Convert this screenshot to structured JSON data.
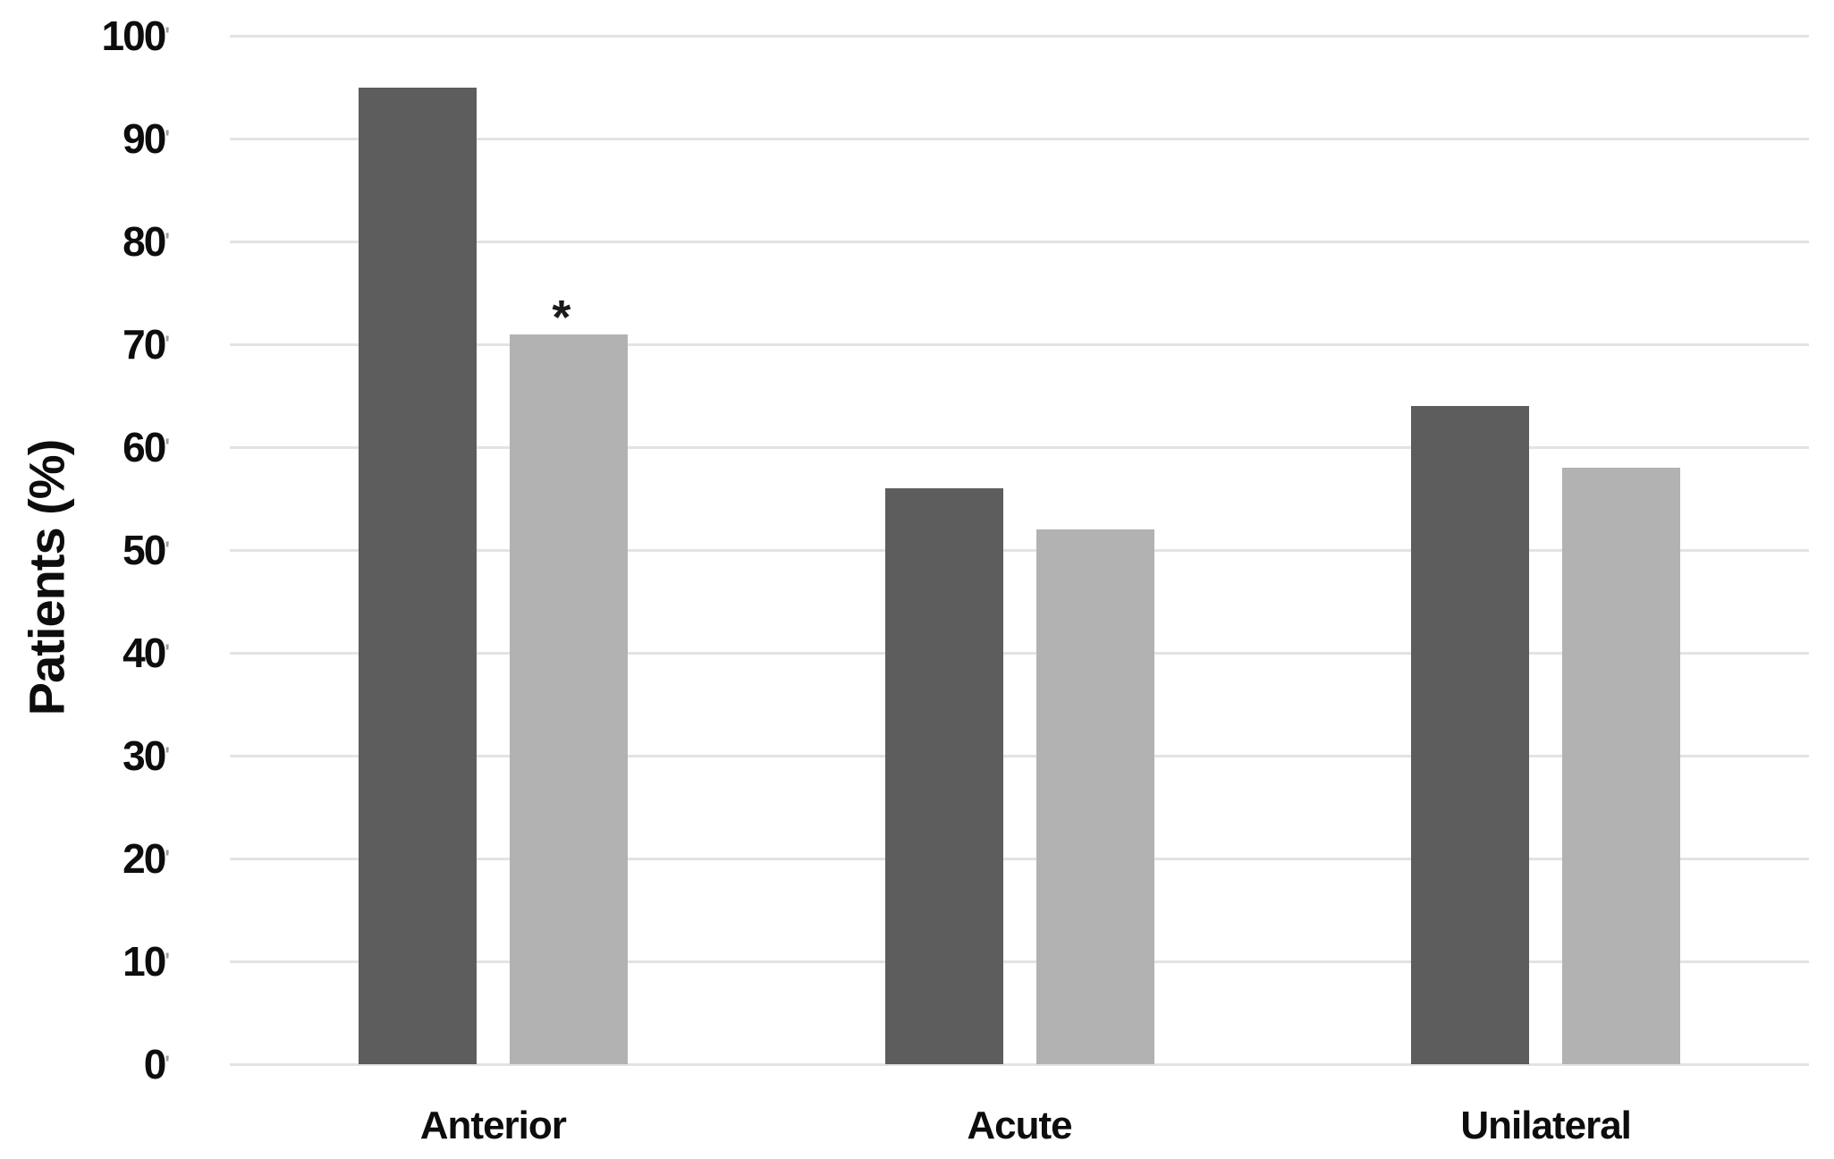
{
  "chart_data": {
    "type": "bar",
    "title": "",
    "ylabel": "Patients (%)",
    "xlabel": "",
    "categories": [
      "Anterior",
      "Acute",
      "Unilateral"
    ],
    "series": [
      {
        "name": "series-1-dark-gray",
        "color": "#5d5d5d",
        "values": [
          95,
          56,
          64
        ]
      },
      {
        "name": "series-2-light-gray",
        "color": "#b2b2b2",
        "values": [
          71,
          52,
          58
        ]
      }
    ],
    "ylim": [
      0,
      100
    ],
    "yticks": [
      0,
      10,
      20,
      30,
      40,
      50,
      60,
      70,
      80,
      90,
      100
    ],
    "ytick_mark": "'",
    "grid": true,
    "gridline_color": "#e3e3e3",
    "legend_position": "none",
    "background_color": "#ffffff",
    "annotations": [
      {
        "text": "*",
        "category": "Anterior",
        "series_index": 1,
        "position": "above-bar"
      }
    ]
  }
}
